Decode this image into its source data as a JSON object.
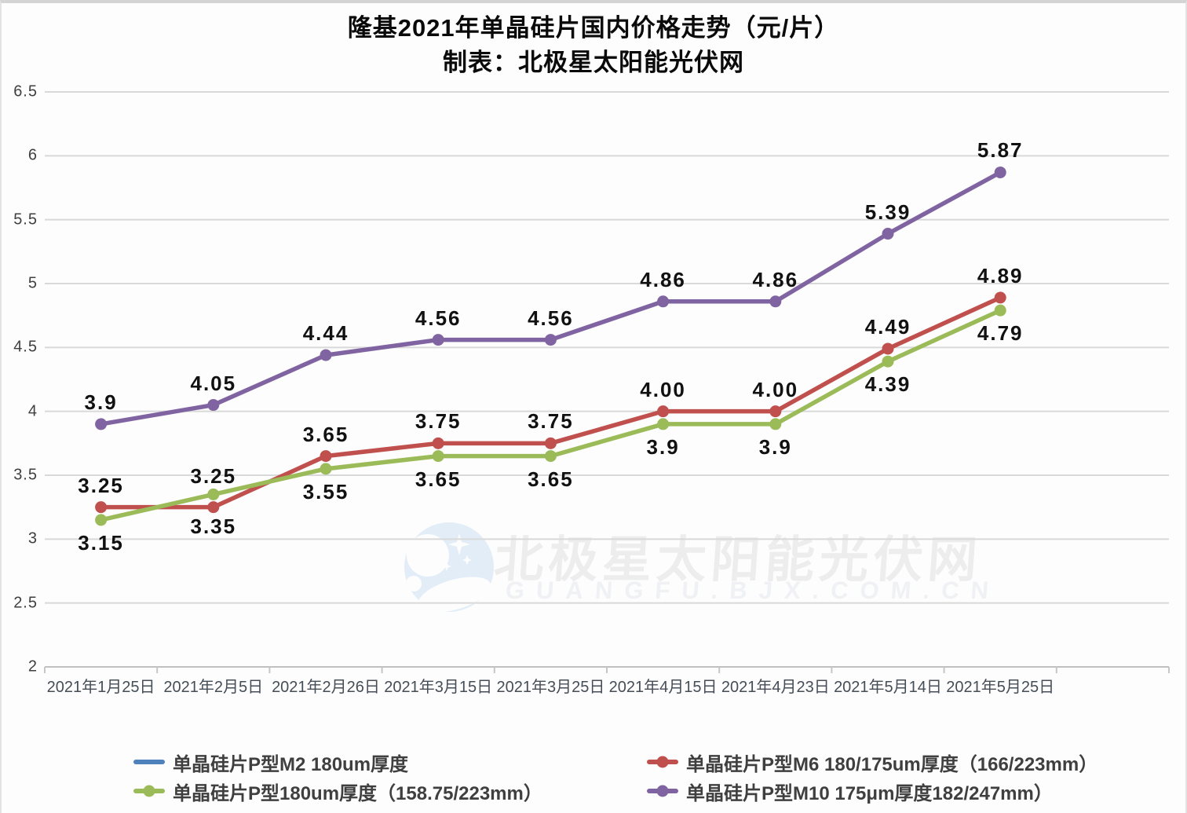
{
  "title": "隆基2021年单晶硅片国内价格走势（元/片）",
  "subtitle": "制表：北极星太阳能光伏网",
  "watermark": {
    "cjk": "北极星太阳能光伏网",
    "latin": "GUANGFU.BJX.COM.CN",
    "logo": "moon-and-stars-logo"
  },
  "colors": {
    "blue": "#4F81BD",
    "red": "#C0504D",
    "green": "#9BBB59",
    "purple": "#8064A2",
    "grid": "#D9D9D9",
    "axis_line": "#C0C0C0",
    "tick": "#C6C6C6",
    "frame_border": "#D4D4D4",
    "watermark_blue": "#E3EDF8",
    "watermark_text": "#EDEDED",
    "watermark_text2": "#F0F1F4"
  },
  "chart_data": {
    "type": "line",
    "title": "隆基2021年单晶硅片国内价格走势（元/片）",
    "ylim": [
      2,
      6.5
    ],
    "grid": true,
    "legend_position": "bottom",
    "y_ticks": [
      "6.5",
      "6",
      "5.5",
      "5",
      "4.5",
      "4",
      "3.5",
      "3",
      "2.5",
      "2"
    ],
    "categories": [
      "2021年1月25日",
      "2021年2月5日",
      "2021年2月26日",
      "2021年3月15日",
      "2021年3月25日",
      "2021年4月15日",
      "2021年4月23日",
      "2021年5月14日",
      "2021年5月25日"
    ],
    "series": [
      {
        "name": "单晶硅片P型M2 180um厚度",
        "color_key": "blue",
        "marker": false,
        "values": [],
        "labels": []
      },
      {
        "name": "单晶硅片P型M6 180/175um厚度（166/223mm）",
        "color_key": "red",
        "marker": true,
        "label_position": "above",
        "values": [
          3.25,
          3.25,
          3.65,
          3.75,
          3.75,
          4.0,
          4.0,
          4.49,
          4.89
        ],
        "labels": [
          "3.25",
          "3.25",
          "3.65",
          "3.75",
          "3.75",
          "4.00",
          "4.00",
          "4.49",
          "4.89"
        ]
      },
      {
        "name": "单晶硅片P型180um厚度（158.75/223mm）",
        "color_key": "green",
        "marker": true,
        "label_position": "below",
        "values": [
          3.15,
          3.35,
          3.55,
          3.65,
          3.65,
          3.9,
          3.9,
          4.39,
          4.79
        ],
        "labels": [
          "3.15",
          "3.35",
          "3.55",
          "3.65",
          "3.65",
          "3.9",
          "3.9",
          "4.39",
          "4.79"
        ]
      },
      {
        "name": "单晶硅片P型M10 175μm厚度182/247mm）",
        "color_key": "purple",
        "marker": true,
        "label_position": "above",
        "values": [
          3.9,
          4.05,
          4.44,
          4.56,
          4.56,
          4.86,
          4.86,
          5.39,
          5.87
        ],
        "labels": [
          "3.9",
          "4.05",
          "4.44",
          "4.56",
          "4.56",
          "4.86",
          "4.86",
          "5.39",
          "5.87"
        ]
      }
    ]
  }
}
